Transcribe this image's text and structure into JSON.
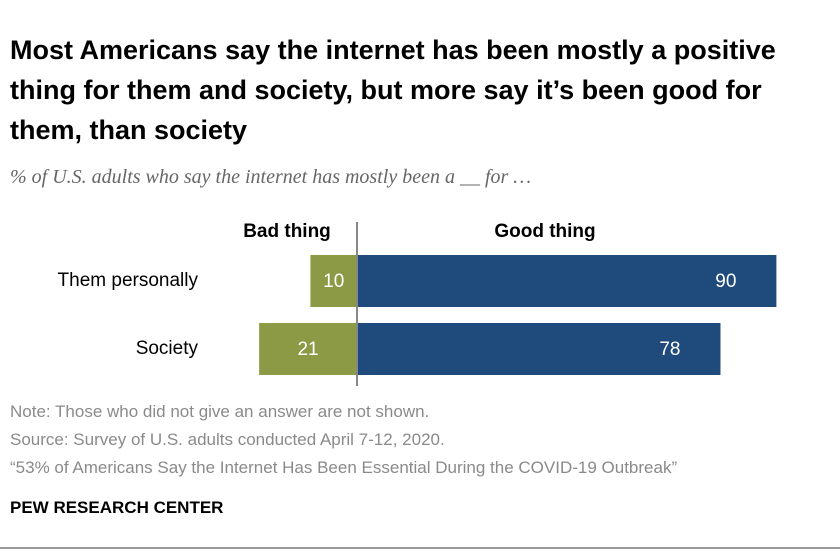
{
  "chart_data": {
    "type": "diverging-bar",
    "title": "Most Americans say the internet has been mostly a positive thing for them and society, but more say it’s been good for them, than society",
    "subtitle": "% of U.S. adults who say the internet has mostly been a __ for …",
    "categories": [
      "Them personally",
      "Society"
    ],
    "series": [
      {
        "name": "Bad thing",
        "color": "#8c9a45",
        "values": [
          10,
          21
        ]
      },
      {
        "name": "Good thing",
        "color": "#1f4a7c",
        "values": [
          90,
          78
        ]
      }
    ],
    "notes": [
      "Note: Those who did not give an answer are not shown.",
      "Source: Survey of U.S. adults conducted April 7-12, 2020.",
      "“53% of Americans Say the Internet Has Been Essential During the COVID-19 Outbreak”"
    ],
    "source_org": "PEW RESEARCH CENTER"
  }
}
